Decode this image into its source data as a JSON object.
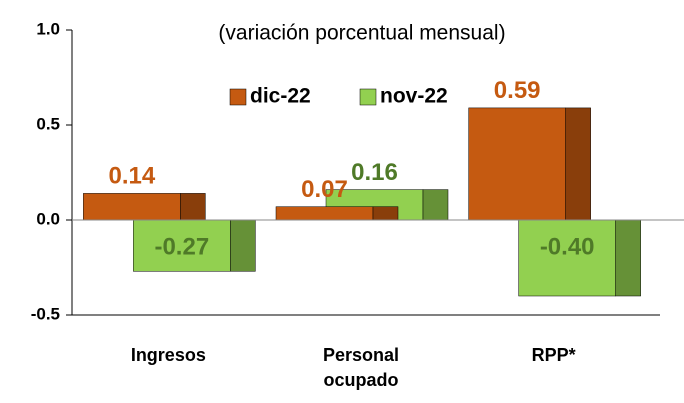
{
  "chart_data": {
    "type": "bar",
    "title": "(variación porcentual mensual)",
    "categories": [
      "Ingresos",
      "Personal ocupado",
      "RPP*"
    ],
    "series": [
      {
        "name": "dic-22",
        "color": "#c55a11",
        "values": [
          0.14,
          0.07,
          0.59
        ],
        "value_labels": [
          "0.14",
          "0.07",
          "0.59"
        ]
      },
      {
        "name": "nov-22",
        "color": "#92d050",
        "values": [
          -0.27,
          0.16,
          -0.4
        ],
        "value_labels": [
          "-0.27",
          "0.16",
          "-0.40"
        ]
      }
    ],
    "ylim": [
      -0.5,
      1.0
    ],
    "yticks": [
      {
        "value": -0.5,
        "label": "-0.5"
      },
      {
        "value": 0,
        "label": "0.0"
      },
      {
        "value": 0.5,
        "label": "0.5"
      },
      {
        "value": 1.0,
        "label": "1.0"
      }
    ],
    "label_colors": [
      "#c55a11",
      "#4f7a28"
    ]
  }
}
